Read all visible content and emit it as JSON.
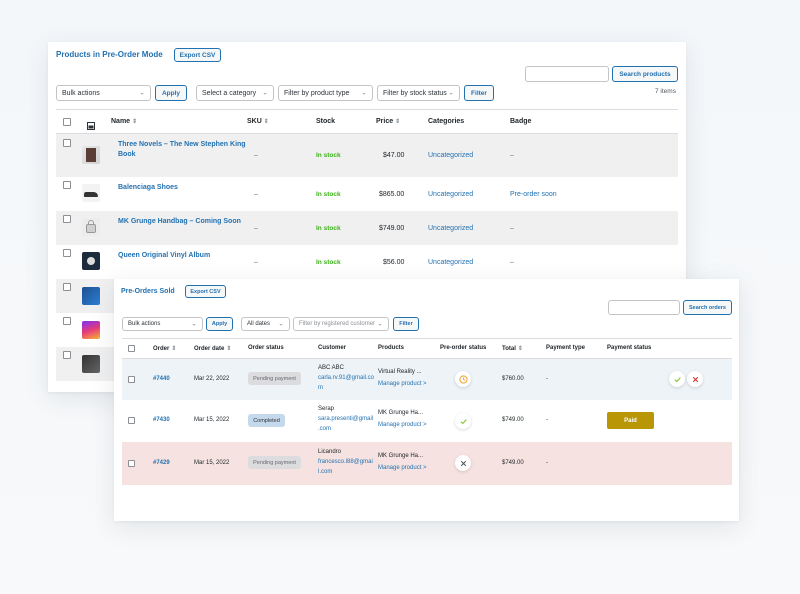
{
  "colors": {
    "accent": "#2271b1",
    "in_stock": "#3db11a",
    "paid": "#b89605",
    "cancelled_row": "#f6e3e1",
    "highlight_row": "#edf3f7"
  },
  "products": {
    "title": "Products in Pre-Order Mode",
    "export_label": "Export CSV",
    "search_label": "Search products",
    "bulk_actions": "Bulk actions",
    "apply_label": "Apply",
    "category_filter": "Select a category",
    "type_filter": "Filter by product type",
    "stock_filter": "Filter by stock status",
    "filter_label": "Filter",
    "count": "7 items",
    "columns": {
      "image": "image-icon",
      "name": "Name",
      "sku": "SKU",
      "stock": "Stock",
      "price": "Price",
      "categories": "Categories",
      "badge": "Badge"
    },
    "rows": [
      {
        "name_line1": "Three Novels – The New Stephen King",
        "name_line2": "Book",
        "sku": "–",
        "stock": "In stock",
        "price": "$47.00",
        "category": "Uncategorized",
        "badge": "–",
        "thumb": "book-thumbnail"
      },
      {
        "name_line1": "Balenciaga Shoes",
        "name_line2": "",
        "sku": "–",
        "stock": "In stock",
        "price": "$865.00",
        "category": "Uncategorized",
        "badge": "Pre-order soon",
        "thumb": "shoes-thumbnail"
      },
      {
        "name_line1": "MK Grunge Handbag – Coming Soon",
        "name_line2": "",
        "sku": "–",
        "stock": "In stock",
        "price": "$749.00",
        "category": "Uncategorized",
        "badge": "–",
        "thumb": "handbag-thumbnail"
      },
      {
        "name_line1": "Queen Original Vinyl Album",
        "name_line2": "",
        "sku": "–",
        "stock": "In stock",
        "price": "$56.00",
        "category": "Uncategorized",
        "badge": "–",
        "thumb": "vinyl-thumbnail"
      }
    ]
  },
  "orders": {
    "title": "Pre-Orders Sold",
    "export_label": "Export CSV",
    "search_label": "Search orders",
    "bulk_actions": "Bulk actions",
    "apply_label": "Apply",
    "dates_filter": "All dates",
    "customer_filter_placeholder": "Filter by registered customer",
    "filter_label": "Filter",
    "columns": {
      "order": "Order",
      "date": "Order date",
      "status": "Order status",
      "customer": "Customer",
      "products": "Products",
      "preorder_status": "Pre-order status",
      "total": "Total",
      "payment_type": "Payment type",
      "payment_status": "Payment status"
    },
    "rows": [
      {
        "order": "#7440",
        "date": "Mar 22, 2022",
        "status": "Pending payment",
        "customer_name": "ABC ABC",
        "email_line1": "carla.rv.91@gmail.co",
        "email_line2": "m",
        "product": "Virtual Reality ...",
        "manage": "Manage product >",
        "preorder_icon": "clock-icon",
        "total": "$760.00",
        "payment_type": "-",
        "payment_status": ""
      },
      {
        "order": "#7430",
        "date": "Mar 15, 2022",
        "status": "Completed",
        "customer_name": "Serap",
        "email_line1": "sara.presenti@gmail",
        "email_line2": ".com",
        "product": "MK Grunge Ha...",
        "manage": "Manage product >",
        "preorder_icon": "check-icon",
        "total": "$749.00",
        "payment_type": "-",
        "payment_status": "Paid"
      },
      {
        "order": "#7429",
        "date": "Mar 15, 2022",
        "status": "Pending payment",
        "customer_name": "Licandro",
        "email_line1": "francesco.l88@gmai",
        "email_line2": "l.com",
        "product": "MK Grunge Ha...",
        "manage": "Manage product >",
        "preorder_icon": "cross-icon",
        "total": "$749.00",
        "payment_type": "-",
        "payment_status": ""
      }
    ]
  }
}
